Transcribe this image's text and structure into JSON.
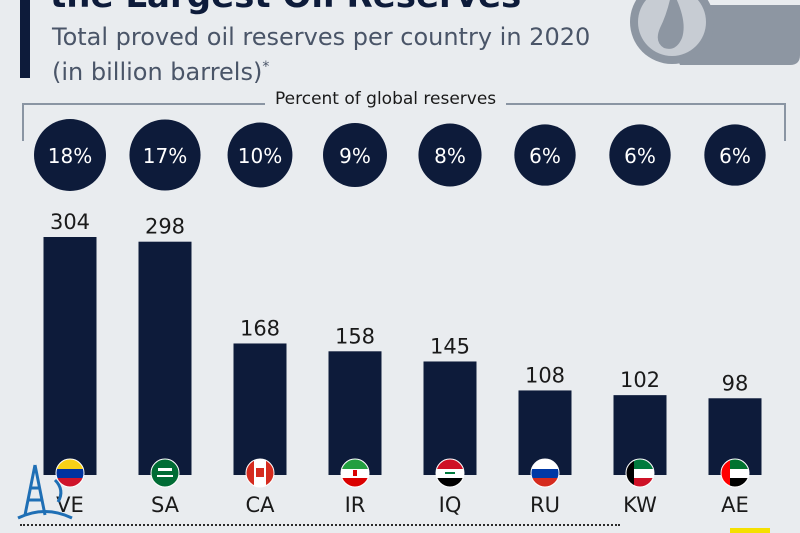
{
  "header": {
    "title": "the Largest Oil Reserves",
    "subtitle_line1": "Total proved oil reserves per country in 2020",
    "subtitle_line2": "(in billion barrels)",
    "subtitle_mark": "*"
  },
  "legend": {
    "percent_label": "Percent of global reserves"
  },
  "colors": {
    "bar": "#0d1b3a",
    "background": "#e9ecef"
  },
  "icons": {
    "header": "oil-drop-icon",
    "watermark": "oil-derrick-logo-icon"
  },
  "chart_data": {
    "type": "bar",
    "categories": [
      "VE",
      "SA",
      "CA",
      "IR",
      "IQ",
      "RU",
      "KW",
      "AE"
    ],
    "values": [
      304,
      298,
      168,
      158,
      145,
      108,
      102,
      98
    ],
    "percent_labels": [
      "18%",
      "17%",
      "10%",
      "9%",
      "8%",
      "6%",
      "6%",
      "6%"
    ],
    "percent_values": [
      18,
      17,
      10,
      9,
      8,
      6,
      6,
      6
    ],
    "flags": [
      "venezuela",
      "saudi-arabia",
      "canada",
      "iran",
      "iraq",
      "russia",
      "kuwait",
      "uae"
    ],
    "ylim": [
      0,
      304
    ],
    "grid": false,
    "legend": false
  }
}
